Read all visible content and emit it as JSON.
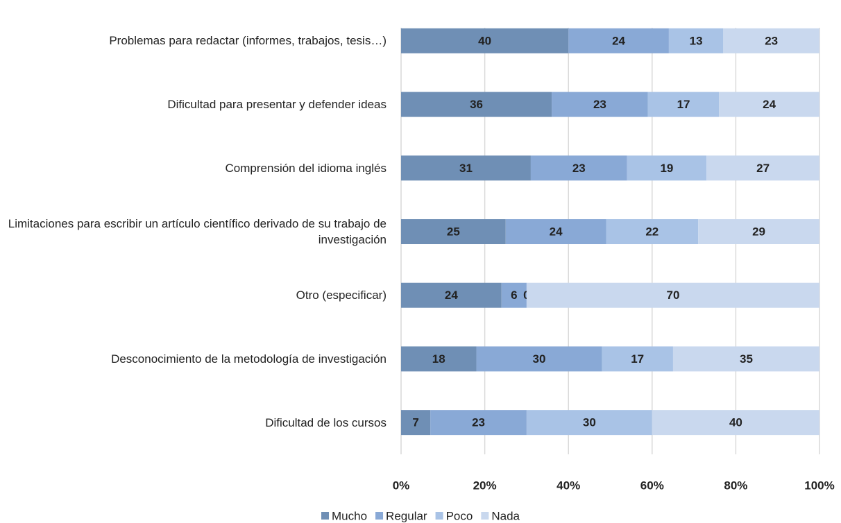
{
  "chart_data": {
    "type": "stacked-bar-horizontal",
    "categories": [
      "Problemas para redactar (informes, trabajos, tesis…)",
      "Dificultad para presentar y defender ideas",
      "Comprensión del idioma inglés",
      "Limitaciones para escribir un artículo científico derivado de su trabajo de investigación",
      "Otro (especificar)",
      "Desconocimiento de la metodología de investigación",
      "Dificultad de los cursos"
    ],
    "series": [
      {
        "name": "Mucho",
        "color": "#6f8fb5",
        "values": [
          40,
          36,
          31,
          25,
          24,
          18,
          7
        ]
      },
      {
        "name": "Regular",
        "color": "#89a9d6",
        "values": [
          24,
          23,
          23,
          24,
          6,
          30,
          23
        ]
      },
      {
        "name": "Poco",
        "color": "#a9c3e6",
        "values": [
          13,
          17,
          19,
          22,
          0,
          17,
          30
        ]
      },
      {
        "name": "Nada",
        "color": "#c9d8ee",
        "values": [
          23,
          24,
          27,
          29,
          70,
          35,
          40
        ]
      }
    ],
    "xlim": [
      0,
      100
    ],
    "xticks": [
      {
        "value": 0,
        "label": "0%"
      },
      {
        "value": 20,
        "label": "20%"
      },
      {
        "value": 40,
        "label": "40%"
      },
      {
        "value": 60,
        "label": "60%"
      },
      {
        "value": 80,
        "label": "80%"
      },
      {
        "value": 100,
        "label": "100%"
      }
    ],
    "grid": true,
    "legend": "bottom"
  }
}
